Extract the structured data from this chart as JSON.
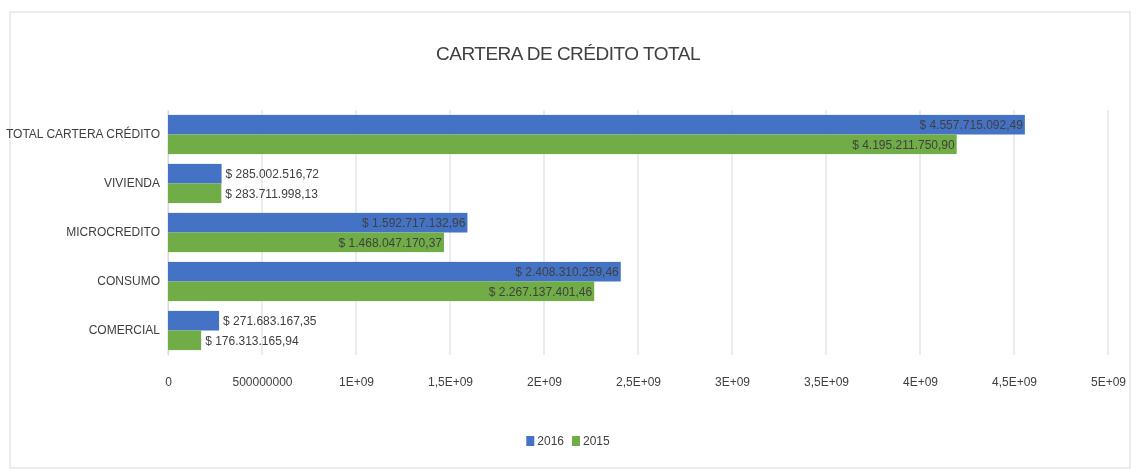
{
  "chart_data": {
    "type": "bar",
    "orientation": "horizontal",
    "title": "CARTERA DE CRÉDITO TOTAL",
    "categories": [
      "TOTAL CARTERA CRÉDITO",
      "VIVIENDA",
      "MICROCREDITO",
      "CONSUMO",
      "COMERCIAL"
    ],
    "series": [
      {
        "name": "2016",
        "color": "#4472c4",
        "values": [
          4557715092.49,
          285002516.72,
          1592717132.96,
          2408310259.46,
          271683167.35
        ],
        "value_labels": [
          "$ 4.557.715.092,49",
          "$ 285.002.516,72",
          "$ 1.592.717.132,96",
          "$ 2.408.310.259,46",
          "$ 271.683.167,35"
        ]
      },
      {
        "name": "2015",
        "color": "#70ad47",
        "values": [
          4195211750.9,
          283711998.13,
          1468047170.37,
          2267137401.46,
          176313165.94
        ],
        "value_labels": [
          "$ 4.195.211.750,90",
          "$ 283.711.998,13",
          "$ 1.468.047.170,37",
          "$ 2.267.137.401,46",
          "$ 176.313.165,94"
        ]
      }
    ],
    "xlim": [
      0,
      5000000000
    ],
    "xticks": [
      0,
      500000000,
      {
        "value": 1000000000,
        "label": "1E+09"
      },
      {
        "value": 1500000000,
        "label": "1,5E+09"
      },
      {
        "value": 2000000000,
        "label": "2E+09"
      },
      {
        "value": 2500000000,
        "label": "2,5E+09"
      },
      {
        "value": 3000000000,
        "label": "3E+09"
      },
      {
        "value": 3500000000,
        "label": "3,5E+09"
      },
      {
        "value": 4000000000,
        "label": "4E+09"
      },
      {
        "value": 4500000000,
        "label": "4,5E+09"
      },
      {
        "value": 5000000000,
        "label": "5E+09"
      }
    ],
    "grid": "x",
    "legend": "bottom"
  }
}
